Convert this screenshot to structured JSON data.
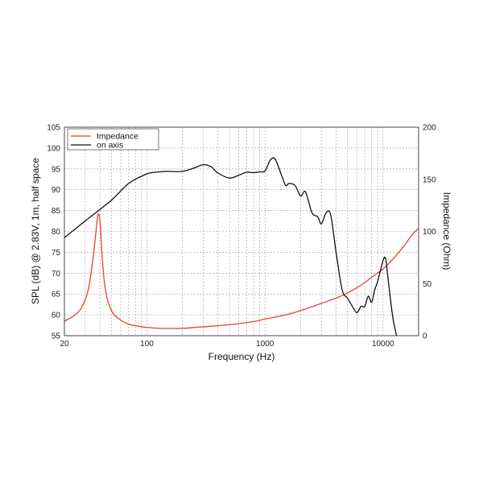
{
  "chart_data": {
    "type": "line",
    "title": "",
    "xlabel": "Frequency (Hz)",
    "ylabel": "SPL (dB) @ 2.83V, 1m, half space",
    "y2label": "Impedance (Ohm)",
    "x_scale": "log",
    "xlim": [
      20,
      20000
    ],
    "ylim": [
      55,
      105
    ],
    "y2lim": [
      0,
      200
    ],
    "grid": true,
    "legend_position": "top-left",
    "x_tick_labels": [
      "20",
      "100",
      "1000",
      "10000"
    ],
    "y_ticks": [
      55,
      60,
      65,
      70,
      75,
      80,
      85,
      90,
      95,
      100,
      105
    ],
    "y2_ticks": [
      0,
      50,
      100,
      150,
      200
    ],
    "series": [
      {
        "name": "Impedance",
        "axis": "right",
        "color": "#e0452f",
        "x": [
          20,
          24,
          28,
          32,
          35,
          37,
          38,
          39,
          40,
          41,
          42,
          44,
          47,
          52,
          60,
          70,
          85,
          100,
          130,
          160,
          200,
          300,
          500,
          800,
          1000,
          1500,
          2000,
          3000,
          4000,
          5000,
          6000,
          7000,
          8000,
          10000,
          12000,
          15000,
          18000,
          20000
        ],
        "y": [
          14,
          19,
          27,
          45,
          75,
          100,
          112,
          117,
          110,
          92,
          72,
          48,
          32,
          21,
          15,
          11,
          9,
          8,
          7,
          7,
          7,
          8.5,
          10.5,
          13.5,
          16,
          20,
          24,
          31,
          36,
          41,
          46,
          51,
          56,
          64,
          73,
          86,
          98,
          103
        ]
      },
      {
        "name": "on axis",
        "axis": "left",
        "color": "#111111",
        "x": [
          20,
          30,
          50,
          70,
          100,
          120,
          150,
          200,
          250,
          300,
          350,
          400,
          500,
          600,
          700,
          800,
          900,
          1000,
          1100,
          1200,
          1300,
          1400,
          1500,
          1600,
          1800,
          2000,
          2200,
          2500,
          2800,
          3000,
          3300,
          3600,
          4000,
          4500,
          5000,
          5500,
          6000,
          6500,
          7000,
          7500,
          8000,
          8500,
          9000,
          10000,
          10500,
          11000,
          12000,
          13000
        ],
        "y": [
          78.5,
          82.5,
          87.5,
          91.5,
          93.8,
          94.2,
          94.4,
          94.4,
          95.2,
          96.0,
          95.5,
          94.0,
          92.8,
          93.5,
          94.2,
          94.1,
          94.3,
          94.5,
          97.0,
          97.6,
          95.5,
          93.0,
          91.0,
          91.5,
          91.0,
          88.5,
          89.5,
          84.5,
          83.5,
          81.8,
          84.5,
          84.0,
          75.0,
          66.0,
          64.0,
          62.0,
          60.5,
          62.0,
          62.0,
          64.5,
          63.0,
          66.0,
          68.0,
          73.0,
          73.5,
          69.0,
          60.0,
          55.0
        ]
      }
    ]
  }
}
